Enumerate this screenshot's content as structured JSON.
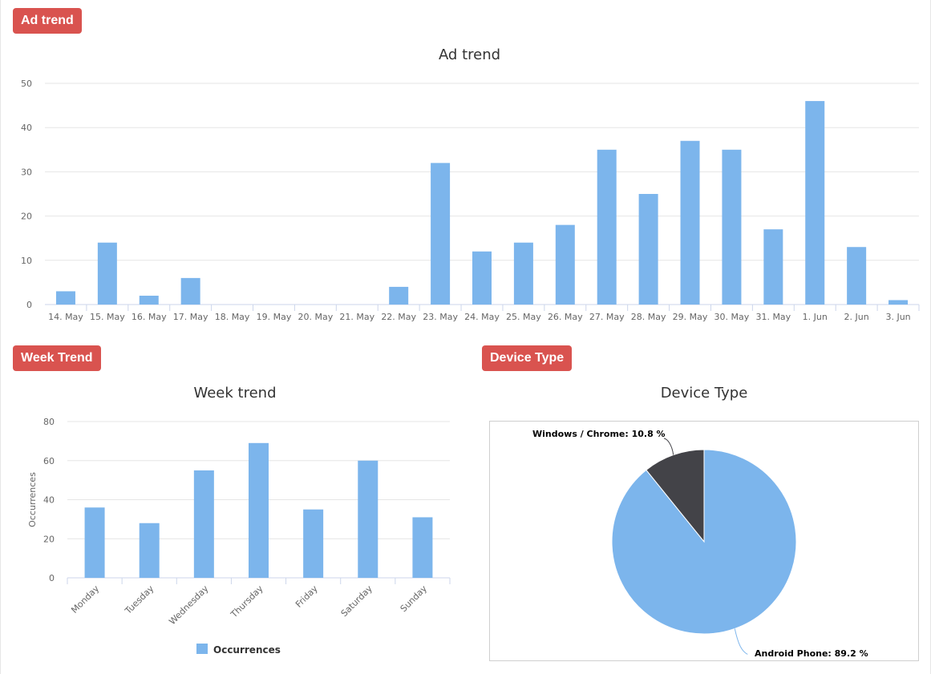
{
  "sections": {
    "ad_trend_badge": "Ad trend",
    "week_trend_badge": "Week Trend",
    "device_type_badge": "Device Type"
  },
  "colors": {
    "bar": "#7cb5ec",
    "dark": "#434348",
    "badge": "#d9534f"
  },
  "chart_data": [
    {
      "type": "bar",
      "title": "Ad trend",
      "categories": [
        "14. May",
        "15. May",
        "16. May",
        "17. May",
        "18. May",
        "19. May",
        "20. May",
        "21. May",
        "22. May",
        "23. May",
        "24. May",
        "25. May",
        "26. May",
        "27. May",
        "28. May",
        "29. May",
        "30. May",
        "31. May",
        "1. Jun",
        "2. Jun",
        "3. Jun"
      ],
      "values": [
        3,
        14,
        2,
        6,
        0,
        0,
        0,
        0,
        4,
        32,
        12,
        14,
        18,
        35,
        25,
        37,
        35,
        17,
        46,
        13,
        1
      ],
      "ylim": [
        0,
        50
      ],
      "yticks": [
        0,
        10,
        20,
        30,
        40,
        50
      ],
      "grid": true
    },
    {
      "type": "bar",
      "title": "Week trend",
      "categories": [
        "Monday",
        "Tuesday",
        "Wednesday",
        "Thursday",
        "Friday",
        "Saturday",
        "Sunday"
      ],
      "series": [
        {
          "name": "Occurrences",
          "values": [
            36,
            28,
            55,
            69,
            35,
            60,
            31
          ]
        }
      ],
      "ylabel": "Occurrences",
      "ylim": [
        0,
        80
      ],
      "yticks": [
        0,
        20,
        40,
        60,
        80
      ],
      "grid": true,
      "legend": "bottom"
    },
    {
      "type": "pie",
      "title": "Device Type",
      "slices": [
        {
          "label": "Windows / Chrome",
          "value": 10.8,
          "text": "Windows / Chrome: 10.8 %"
        },
        {
          "label": "Android Phone",
          "value": 89.2,
          "text": "Android Phone: 89.2 %"
        }
      ]
    }
  ]
}
